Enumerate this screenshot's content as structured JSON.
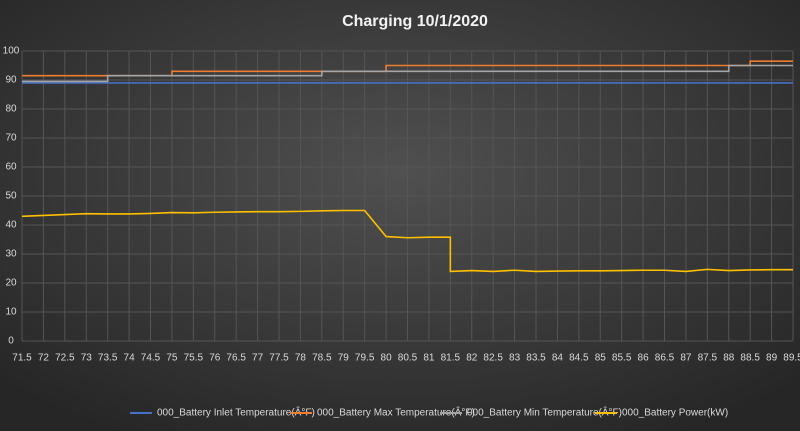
{
  "chart_data": {
    "type": "line",
    "title": "Charging 10/1/2020",
    "xlim": [
      71.5,
      89.5
    ],
    "xticks": [
      71.5,
      72,
      72.5,
      73,
      73.5,
      74,
      74.5,
      75,
      75.5,
      76,
      76.5,
      77,
      77.5,
      78,
      78.5,
      79,
      79.5,
      80,
      80.5,
      81,
      81.5,
      82,
      82.5,
      83,
      83.5,
      84,
      84.5,
      85,
      85.5,
      86,
      86.5,
      87,
      87.5,
      88,
      88.5,
      89,
      89.5
    ],
    "ylim": [
      0,
      100
    ],
    "yticks": [
      0,
      10,
      20,
      30,
      40,
      50,
      60,
      70,
      80,
      90,
      100
    ],
    "grid": true,
    "legend": "bottom",
    "series": [
      {
        "name": "000_Battery Inlet Temperature(Â°F)",
        "color": "#4472c4",
        "x": [
          71.5,
          89.5
        ],
        "values": [
          89,
          89
        ]
      },
      {
        "name": "000_Battery Max Temperature(Â°F)",
        "color": "#ed7d31",
        "x": [
          71.5,
          75,
          75,
          80,
          80,
          88.5,
          88.5,
          89.5
        ],
        "values": [
          91.5,
          91.5,
          93,
          93,
          95,
          95,
          96.5,
          96.5
        ]
      },
      {
        "name": "000_Battery Min Temperature(Â°F)",
        "color": "#a5a5a5",
        "x": [
          71.5,
          73.5,
          73.5,
          78.5,
          78.5,
          88,
          88,
          89.5
        ],
        "values": [
          89.5,
          89.5,
          91.5,
          91.5,
          93,
          93,
          95,
          95
        ]
      },
      {
        "name": "000_Battery Power(kW)",
        "color": "#ffc000",
        "x": [
          71.5,
          72,
          72.5,
          73,
          73.5,
          74,
          74.5,
          75,
          75.5,
          76,
          76.5,
          77,
          77.5,
          78,
          78.5,
          79,
          79.5,
          80,
          80.5,
          81,
          81.5,
          81.5,
          82,
          82.5,
          83,
          83.5,
          84,
          84.5,
          85,
          85.5,
          86,
          86.5,
          87,
          87.5,
          88,
          88.5,
          89,
          89.5
        ],
        "values": [
          43,
          43.3,
          43.6,
          43.9,
          43.8,
          43.8,
          44,
          44.3,
          44.2,
          44.4,
          44.5,
          44.6,
          44.6,
          44.7,
          44.9,
          45,
          45,
          36,
          35.6,
          35.8,
          35.8,
          24,
          24.3,
          24,
          24.4,
          24,
          24.1,
          24.2,
          24.2,
          24.3,
          24.4,
          24.4,
          24,
          24.7,
          24.3,
          24.5,
          24.6,
          24.6
        ]
      }
    ]
  }
}
